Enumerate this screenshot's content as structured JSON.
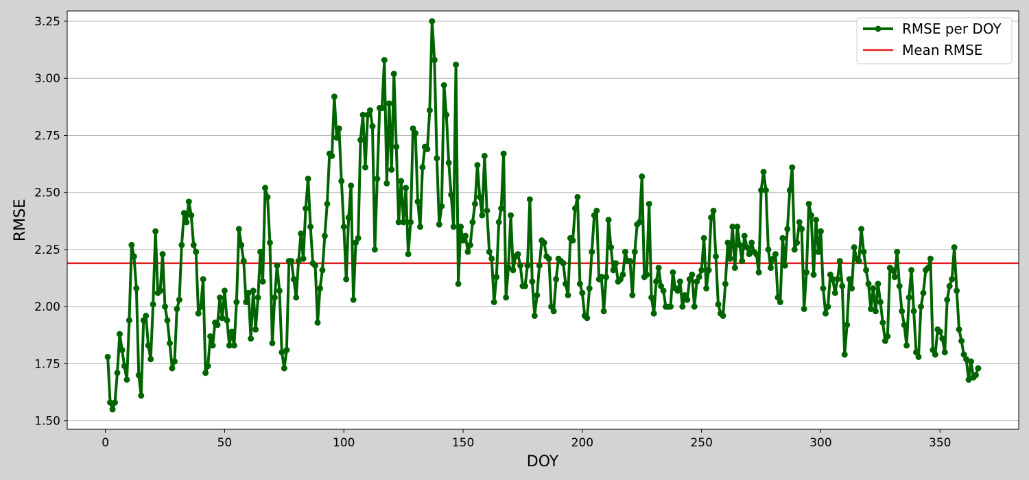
{
  "chart_data": {
    "type": "line",
    "xlabel": "DOY",
    "ylabel": "RMSE",
    "xlim": [
      -16,
      383
    ],
    "ylim": [
      1.463,
      3.295
    ],
    "x_ticks": [
      0,
      50,
      100,
      150,
      200,
      250,
      300,
      350
    ],
    "x_tick_labels": [
      "0",
      "50",
      "100",
      "150",
      "200",
      "250",
      "300",
      "350"
    ],
    "y_ticks": [
      1.5,
      1.75,
      2.0,
      2.25,
      2.5,
      2.75,
      3.0,
      3.25
    ],
    "y_tick_labels": [
      "1.50",
      "1.75",
      "2.00",
      "2.25",
      "2.50",
      "2.75",
      "3.00",
      "3.25"
    ],
    "grid": "horizontal",
    "legend_position": "top-right",
    "colors": {
      "series": "#006400",
      "mean": "#e31a1c",
      "background": "#d3d3d3",
      "axes_face": "#ffffff"
    },
    "series": [
      {
        "name": "RMSE per DOY",
        "x": [
          1,
          2,
          3,
          4,
          5,
          6,
          7,
          8,
          9,
          10,
          11,
          12,
          13,
          14,
          15,
          16,
          17,
          18,
          19,
          20,
          21,
          22,
          23,
          24,
          25,
          26,
          27,
          28,
          29,
          30,
          31,
          32,
          33,
          34,
          35,
          36,
          37,
          38,
          39,
          40,
          41,
          42,
          43,
          44,
          45,
          46,
          47,
          48,
          49,
          50,
          51,
          52,
          53,
          54,
          55,
          56,
          57,
          58,
          59,
          60,
          61,
          62,
          63,
          64,
          65,
          66,
          67,
          68,
          69,
          70,
          71,
          72,
          73,
          74,
          75,
          76,
          77,
          78,
          79,
          80,
          81,
          82,
          83,
          84,
          85,
          86,
          87,
          88,
          89,
          90,
          91,
          92,
          93,
          94,
          95,
          96,
          97,
          98,
          99,
          100,
          101,
          102,
          103,
          104,
          105,
          106,
          107,
          108,
          109,
          110,
          111,
          112,
          113,
          114,
          115,
          116,
          117,
          118,
          119,
          120,
          121,
          122,
          123,
          124,
          125,
          126,
          127,
          128,
          129,
          130,
          131,
          132,
          133,
          134,
          135,
          136,
          137,
          138,
          139,
          140,
          141,
          142,
          143,
          144,
          145,
          146,
          147,
          148,
          149,
          150,
          151,
          152,
          153,
          154,
          155,
          156,
          157,
          158,
          159,
          160,
          161,
          162,
          163,
          164,
          165,
          166,
          167,
          168,
          169,
          170,
          171,
          172,
          173,
          174,
          175,
          176,
          177,
          178,
          179,
          180,
          181,
          182,
          183,
          184,
          185,
          186,
          187,
          188,
          189,
          190,
          191,
          192,
          193,
          194,
          195,
          196,
          197,
          198,
          199,
          200,
          201,
          202,
          203,
          204,
          205,
          206,
          207,
          208,
          209,
          210,
          211,
          212,
          213,
          214,
          215,
          216,
          217,
          218,
          219,
          220,
          221,
          222,
          223,
          224,
          225,
          226,
          227,
          228,
          229,
          230,
          231,
          232,
          233,
          234,
          235,
          236,
          237,
          238,
          239,
          240,
          241,
          242,
          243,
          244,
          245,
          246,
          247,
          248,
          249,
          250,
          251,
          252,
          253,
          254,
          255,
          256,
          257,
          258,
          259,
          260,
          261,
          262,
          263,
          264,
          265,
          266,
          267,
          268,
          269,
          270,
          271,
          272,
          273,
          274,
          275,
          276,
          277,
          278,
          279,
          280,
          281,
          282,
          283,
          284,
          285,
          286,
          287,
          288,
          289,
          290,
          291,
          292,
          293,
          294,
          295,
          296,
          297,
          298,
          299,
          300,
          301,
          302,
          303,
          304,
          305,
          306,
          307,
          308,
          309,
          310,
          311,
          312,
          313,
          314,
          315,
          316,
          317,
          318,
          319,
          320,
          321,
          322,
          323,
          324,
          325,
          326,
          327,
          328,
          329,
          330,
          331,
          332,
          333,
          334,
          335,
          336,
          337,
          338,
          339,
          340,
          341,
          342,
          343,
          344,
          345,
          346,
          347,
          348,
          349,
          350,
          351,
          352,
          353,
          354,
          355,
          356,
          357,
          358,
          359,
          360,
          361,
          362,
          363,
          364,
          365,
          366
        ],
        "y": [
          1.78,
          1.58,
          1.55,
          1.58,
          1.71,
          1.88,
          1.81,
          1.74,
          1.68,
          1.94,
          2.27,
          2.22,
          2.08,
          1.7,
          1.61,
          1.94,
          1.96,
          1.83,
          1.77,
          2.01,
          2.33,
          2.06,
          2.07,
          2.23,
          2.0,
          1.94,
          1.84,
          1.73,
          1.76,
          1.99,
          2.03,
          2.27,
          2.41,
          2.37,
          2.46,
          2.4,
          2.27,
          2.24,
          1.97,
          2.0,
          2.12,
          1.71,
          1.74,
          1.87,
          1.83,
          1.93,
          1.92,
          2.04,
          1.95,
          2.07,
          1.94,
          1.83,
          1.89,
          1.83,
          2.02,
          2.34,
          2.27,
          2.2,
          2.02,
          2.06,
          1.86,
          2.07,
          1.9,
          2.04,
          2.24,
          2.11,
          2.52,
          2.48,
          2.28,
          1.84,
          2.04,
          2.18,
          2.07,
          1.8,
          1.73,
          1.81,
          2.2,
          2.2,
          2.12,
          2.04,
          2.2,
          2.32,
          2.21,
          2.43,
          2.56,
          2.35,
          2.19,
          2.18,
          1.93,
          2.08,
          2.16,
          2.31,
          2.45,
          2.67,
          2.66,
          2.92,
          2.74,
          2.78,
          2.55,
          2.35,
          2.12,
          2.39,
          2.53,
          2.03,
          2.28,
          2.3,
          2.73,
          2.84,
          2.61,
          2.84,
          2.86,
          2.79,
          2.25,
          2.56,
          2.87,
          2.87,
          3.08,
          2.54,
          2.89,
          2.6,
          3.02,
          2.7,
          2.37,
          2.55,
          2.37,
          2.52,
          2.23,
          2.37,
          2.78,
          2.76,
          2.46,
          2.35,
          2.61,
          2.7,
          2.69,
          2.86,
          3.25,
          3.08,
          2.65,
          2.36,
          2.44,
          2.97,
          2.84,
          2.63,
          2.49,
          2.35,
          3.06,
          2.1,
          2.35,
          2.29,
          2.31,
          2.24,
          2.27,
          2.37,
          2.45,
          2.62,
          2.48,
          2.4,
          2.66,
          2.42,
          2.24,
          2.21,
          2.02,
          2.13,
          2.37,
          2.43,
          2.67,
          2.04,
          2.17,
          2.4,
          2.16,
          2.22,
          2.23,
          2.18,
          2.09,
          2.09,
          2.18,
          2.47,
          2.11,
          1.96,
          2.05,
          2.18,
          2.29,
          2.28,
          2.22,
          2.21,
          2.0,
          1.98,
          2.12,
          2.21,
          2.2,
          2.19,
          2.1,
          2.05,
          2.3,
          2.29,
          2.43,
          2.48,
          2.1,
          2.06,
          1.96,
          1.95,
          2.08,
          2.24,
          2.4,
          2.42,
          2.12,
          2.13,
          1.98,
          2.13,
          2.38,
          2.26,
          2.16,
          2.19,
          2.11,
          2.12,
          2.14,
          2.24,
          2.2,
          2.2,
          2.05,
          2.24,
          2.36,
          2.37,
          2.57,
          2.13,
          2.14,
          2.45,
          2.04,
          1.97,
          2.11,
          2.17,
          2.09,
          2.07,
          2.0,
          2.0,
          2.0,
          2.15,
          2.08,
          2.07,
          2.11,
          2.0,
          2.05,
          2.03,
          2.12,
          2.14,
          2.0,
          2.11,
          2.13,
          2.16,
          2.3,
          2.08,
          2.16,
          2.39,
          2.42,
          2.22,
          2.01,
          1.97,
          1.96,
          2.1,
          2.28,
          2.21,
          2.35,
          2.17,
          2.35,
          2.27,
          2.2,
          2.31,
          2.26,
          2.23,
          2.28,
          2.24,
          2.23,
          2.15,
          2.51,
          2.59,
          2.51,
          2.25,
          2.17,
          2.21,
          2.23,
          2.04,
          2.02,
          2.3,
          2.18,
          2.34,
          2.51,
          2.61,
          2.25,
          2.28,
          2.37,
          2.34,
          1.99,
          2.15,
          2.45,
          2.4,
          2.14,
          2.38,
          2.24,
          2.33,
          2.08,
          1.97,
          2.0,
          2.14,
          2.12,
          2.06,
          2.12,
          2.2,
          2.09,
          1.79,
          1.92,
          2.12,
          2.08,
          2.26,
          2.21,
          2.2,
          2.34,
          2.24,
          2.16,
          2.1,
          1.99,
          2.08,
          1.98,
          2.1,
          2.02,
          1.93,
          1.85,
          1.87,
          2.17,
          2.16,
          2.13,
          2.24,
          2.09,
          1.98,
          1.92,
          1.83,
          2.04,
          2.16,
          1.98,
          1.8,
          1.78,
          2.0,
          2.06,
          2.16,
          2.17,
          2.21,
          1.81,
          1.79,
          1.9,
          1.89,
          1.86,
          1.8,
          2.03,
          2.09,
          2.12,
          2.26,
          2.07,
          1.9,
          1.85,
          1.79,
          1.77,
          1.68,
          1.76,
          1.69,
          1.7,
          1.73
        ]
      },
      {
        "name": "Mean RMSE",
        "value": 2.19
      }
    ]
  }
}
